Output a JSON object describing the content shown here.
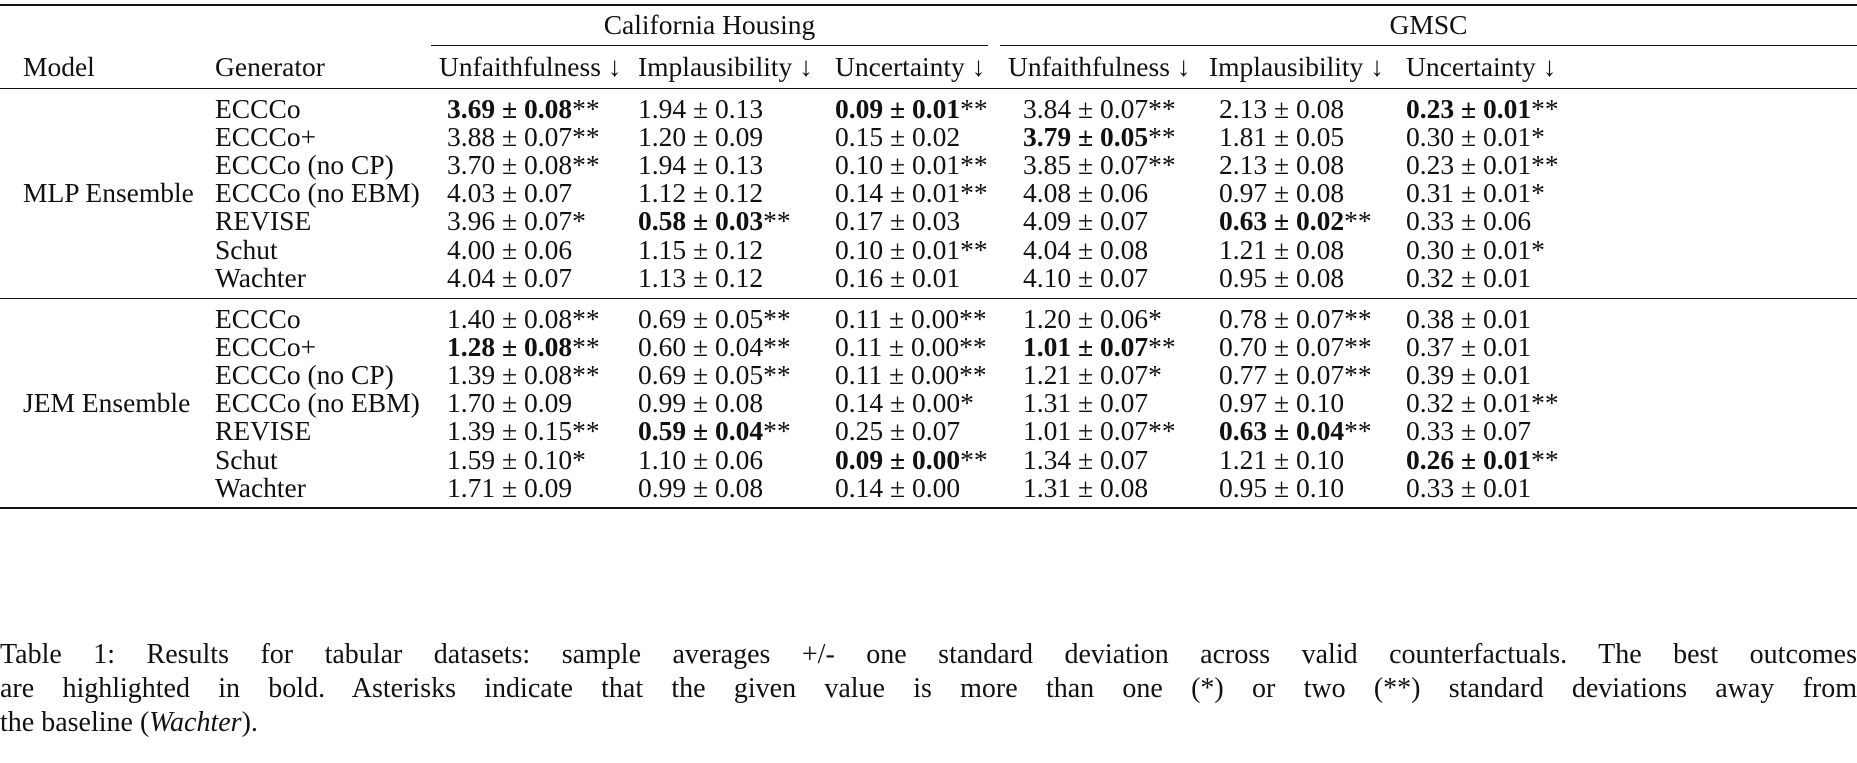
{
  "headers": {
    "model": "Model",
    "generator": "Generator",
    "groups": [
      "California Housing",
      "GMSC"
    ],
    "metrics": [
      "Unfaithfulness ↓",
      "Implausibility ↓",
      "Uncertainty ↓",
      "Unfaithfulness ↓",
      "Implausibility ↓",
      "Uncertainty ↓"
    ]
  },
  "blocks": [
    {
      "model": "MLP Ensemble",
      "rows": [
        {
          "generator": "ECCCo",
          "cells": [
            {
              "v": "3.69 ± 0.08",
              "s": "**",
              "bold": true
            },
            {
              "v": "1.94 ± 0.13",
              "s": "",
              "bold": false
            },
            {
              "v": "0.09 ± 0.01",
              "s": "**",
              "bold": true
            },
            {
              "v": "3.84 ± 0.07",
              "s": "**",
              "bold": false
            },
            {
              "v": "2.13 ± 0.08",
              "s": "",
              "bold": false
            },
            {
              "v": "0.23 ± 0.01",
              "s": "**",
              "bold": true
            }
          ]
        },
        {
          "generator": "ECCCo+",
          "cells": [
            {
              "v": "3.88 ± 0.07",
              "s": "**",
              "bold": false
            },
            {
              "v": "1.20 ± 0.09",
              "s": "",
              "bold": false
            },
            {
              "v": "0.15 ± 0.02",
              "s": "",
              "bold": false
            },
            {
              "v": "3.79 ± 0.05",
              "s": "**",
              "bold": true
            },
            {
              "v": "1.81 ± 0.05",
              "s": "",
              "bold": false
            },
            {
              "v": "0.30 ± 0.01",
              "s": "*",
              "bold": false
            }
          ]
        },
        {
          "generator": "ECCCo (no CP)",
          "cells": [
            {
              "v": "3.70 ± 0.08",
              "s": "**",
              "bold": false
            },
            {
              "v": "1.94 ± 0.13",
              "s": "",
              "bold": false
            },
            {
              "v": "0.10 ± 0.01",
              "s": "**",
              "bold": false
            },
            {
              "v": "3.85 ± 0.07",
              "s": "**",
              "bold": false
            },
            {
              "v": "2.13 ± 0.08",
              "s": "",
              "bold": false
            },
            {
              "v": "0.23 ± 0.01",
              "s": "**",
              "bold": false
            }
          ]
        },
        {
          "generator": "ECCCo (no EBM)",
          "cells": [
            {
              "v": "4.03 ± 0.07",
              "s": "",
              "bold": false
            },
            {
              "v": "1.12 ± 0.12",
              "s": "",
              "bold": false
            },
            {
              "v": "0.14 ± 0.01",
              "s": "**",
              "bold": false
            },
            {
              "v": "4.08 ± 0.06",
              "s": "",
              "bold": false
            },
            {
              "v": "0.97 ± 0.08",
              "s": "",
              "bold": false
            },
            {
              "v": "0.31 ± 0.01",
              "s": "*",
              "bold": false
            }
          ]
        },
        {
          "generator": "REVISE",
          "cells": [
            {
              "v": "3.96 ± 0.07",
              "s": "*",
              "bold": false
            },
            {
              "v": "0.58 ± 0.03",
              "s": "**",
              "bold": true
            },
            {
              "v": "0.17 ± 0.03",
              "s": "",
              "bold": false
            },
            {
              "v": "4.09 ± 0.07",
              "s": "",
              "bold": false
            },
            {
              "v": "0.63 ± 0.02",
              "s": "**",
              "bold": true
            },
            {
              "v": "0.33 ± 0.06",
              "s": "",
              "bold": false
            }
          ]
        },
        {
          "generator": "Schut",
          "cells": [
            {
              "v": "4.00 ± 0.06",
              "s": "",
              "bold": false
            },
            {
              "v": "1.15 ± 0.12",
              "s": "",
              "bold": false
            },
            {
              "v": "0.10 ± 0.01",
              "s": "**",
              "bold": false
            },
            {
              "v": "4.04 ± 0.08",
              "s": "",
              "bold": false
            },
            {
              "v": "1.21 ± 0.08",
              "s": "",
              "bold": false
            },
            {
              "v": "0.30 ± 0.01",
              "s": "*",
              "bold": false
            }
          ]
        },
        {
          "generator": "Wachter",
          "cells": [
            {
              "v": "4.04 ± 0.07",
              "s": "",
              "bold": false
            },
            {
              "v": "1.13 ± 0.12",
              "s": "",
              "bold": false
            },
            {
              "v": "0.16 ± 0.01",
              "s": "",
              "bold": false
            },
            {
              "v": "4.10 ± 0.07",
              "s": "",
              "bold": false
            },
            {
              "v": "0.95 ± 0.08",
              "s": "",
              "bold": false
            },
            {
              "v": "0.32 ± 0.01",
              "s": "",
              "bold": false
            }
          ]
        }
      ]
    },
    {
      "model": "JEM Ensemble",
      "rows": [
        {
          "generator": "ECCCo",
          "cells": [
            {
              "v": "1.40 ± 0.08",
              "s": "**",
              "bold": false
            },
            {
              "v": "0.69 ± 0.05",
              "s": "**",
              "bold": false
            },
            {
              "v": "0.11 ± 0.00",
              "s": "**",
              "bold": false
            },
            {
              "v": "1.20 ± 0.06",
              "s": "*",
              "bold": false
            },
            {
              "v": "0.78 ± 0.07",
              "s": "**",
              "bold": false
            },
            {
              "v": "0.38 ± 0.01",
              "s": "",
              "bold": false
            }
          ]
        },
        {
          "generator": "ECCCo+",
          "cells": [
            {
              "v": "1.28 ± 0.08",
              "s": "**",
              "bold": true
            },
            {
              "v": "0.60 ± 0.04",
              "s": "**",
              "bold": false
            },
            {
              "v": "0.11 ± 0.00",
              "s": "**",
              "bold": false
            },
            {
              "v": "1.01 ± 0.07",
              "s": "**",
              "bold": true
            },
            {
              "v": "0.70 ± 0.07",
              "s": "**",
              "bold": false
            },
            {
              "v": "0.37 ± 0.01",
              "s": "",
              "bold": false
            }
          ]
        },
        {
          "generator": "ECCCo (no CP)",
          "cells": [
            {
              "v": "1.39 ± 0.08",
              "s": "**",
              "bold": false
            },
            {
              "v": "0.69 ± 0.05",
              "s": "**",
              "bold": false
            },
            {
              "v": "0.11 ± 0.00",
              "s": "**",
              "bold": false
            },
            {
              "v": "1.21 ± 0.07",
              "s": "*",
              "bold": false
            },
            {
              "v": "0.77 ± 0.07",
              "s": "**",
              "bold": false
            },
            {
              "v": "0.39 ± 0.01",
              "s": "",
              "bold": false
            }
          ]
        },
        {
          "generator": "ECCCo (no EBM)",
          "cells": [
            {
              "v": "1.70 ± 0.09",
              "s": "",
              "bold": false
            },
            {
              "v": "0.99 ± 0.08",
              "s": "",
              "bold": false
            },
            {
              "v": "0.14 ± 0.00",
              "s": "*",
              "bold": false
            },
            {
              "v": "1.31 ± 0.07",
              "s": "",
              "bold": false
            },
            {
              "v": "0.97 ± 0.10",
              "s": "",
              "bold": false
            },
            {
              "v": "0.32 ± 0.01",
              "s": "**",
              "bold": false
            }
          ]
        },
        {
          "generator": "REVISE",
          "cells": [
            {
              "v": "1.39 ± 0.15",
              "s": "**",
              "bold": false
            },
            {
              "v": "0.59 ± 0.04",
              "s": "**",
              "bold": true
            },
            {
              "v": "0.25 ± 0.07",
              "s": "",
              "bold": false
            },
            {
              "v": "1.01 ± 0.07",
              "s": "**",
              "bold": false
            },
            {
              "v": "0.63 ± 0.04",
              "s": "**",
              "bold": true
            },
            {
              "v": "0.33 ± 0.07",
              "s": "",
              "bold": false
            }
          ]
        },
        {
          "generator": "Schut",
          "cells": [
            {
              "v": "1.59 ± 0.10",
              "s": "*",
              "bold": false
            },
            {
              "v": "1.10 ± 0.06",
              "s": "",
              "bold": false
            },
            {
              "v": "0.09 ± 0.00",
              "s": "**",
              "bold": true
            },
            {
              "v": "1.34 ± 0.07",
              "s": "",
              "bold": false
            },
            {
              "v": "1.21 ± 0.10",
              "s": "",
              "bold": false
            },
            {
              "v": "0.26 ± 0.01",
              "s": "**",
              "bold": true
            }
          ]
        },
        {
          "generator": "Wachter",
          "cells": [
            {
              "v": "1.71 ± 0.09",
              "s": "",
              "bold": false
            },
            {
              "v": "0.99 ± 0.08",
              "s": "",
              "bold": false
            },
            {
              "v": "0.14 ± 0.00",
              "s": "",
              "bold": false
            },
            {
              "v": "1.31 ± 0.08",
              "s": "",
              "bold": false
            },
            {
              "v": "0.95 ± 0.10",
              "s": "",
              "bold": false
            },
            {
              "v": "0.33 ± 0.01",
              "s": "",
              "bold": false
            }
          ]
        }
      ]
    }
  ],
  "caption": {
    "line1": "Table 1: Results for tabular datasets: sample averages +/- one standard deviation across valid counterfactuals. The best outcomes",
    "line2": "are highlighted in bold. Asterisks indicate that the given value is more than one (*) or two (**) standard deviations away from",
    "line3_pre": "the baseline (",
    "line3_em": "Wachter",
    "line3_post": ")."
  }
}
